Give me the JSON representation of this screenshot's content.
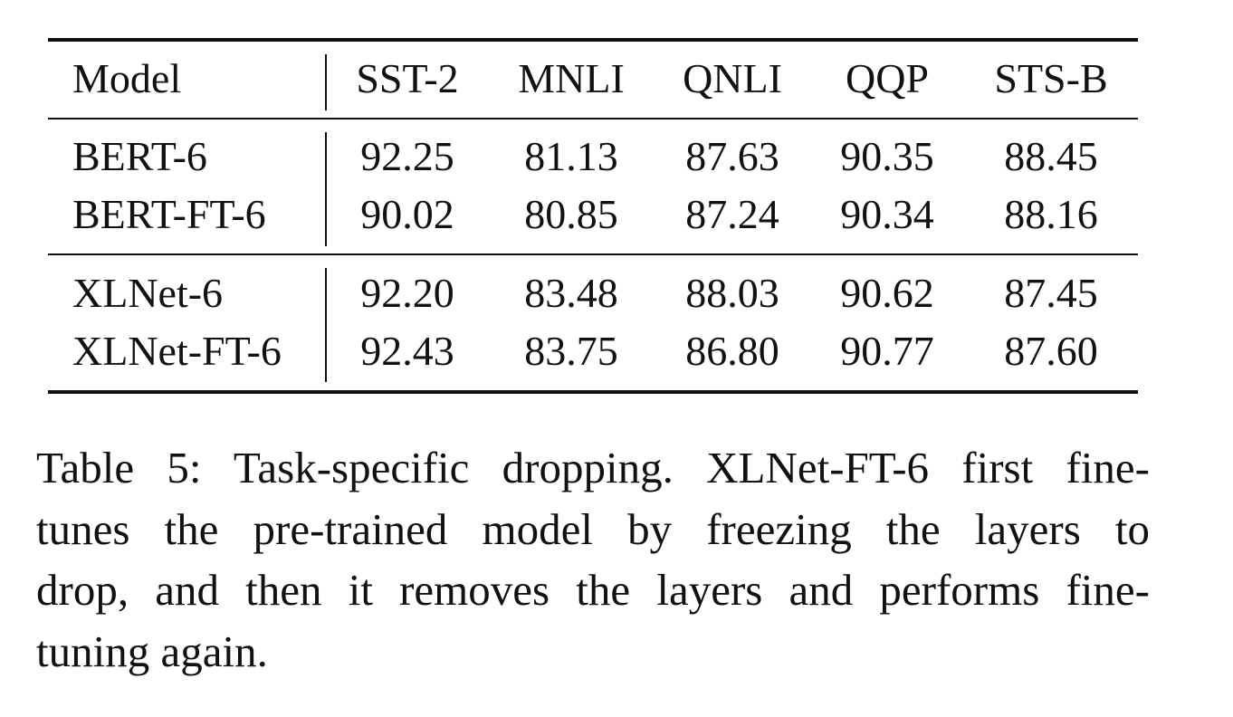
{
  "table": {
    "columns": [
      "Model",
      "SST-2",
      "MNLI",
      "QNLI",
      "QQP",
      "STS-B"
    ],
    "groups": [
      {
        "rows": [
          {
            "model": "BERT-6",
            "values": [
              "92.25",
              "81.13",
              "87.63",
              "90.35",
              "88.45"
            ]
          },
          {
            "model": "BERT-FT-6",
            "values": [
              "90.02",
              "80.85",
              "87.24",
              "90.34",
              "88.16"
            ]
          }
        ]
      },
      {
        "rows": [
          {
            "model": "XLNet-6",
            "values": [
              "92.20",
              "83.48",
              "88.03",
              "90.62",
              "87.45"
            ]
          },
          {
            "model": "XLNet-FT-6",
            "values": [
              "92.43",
              "83.75",
              "86.80",
              "90.77",
              "87.60"
            ]
          }
        ]
      }
    ]
  },
  "caption": {
    "lines": [
      "Table 5: Task-specific dropping. XLNet-FT-6 first fine-",
      "tunes the pre-trained model by freezing the layers to",
      "drop, and then it removes the layers and performs fine-",
      "tuning again."
    ]
  }
}
